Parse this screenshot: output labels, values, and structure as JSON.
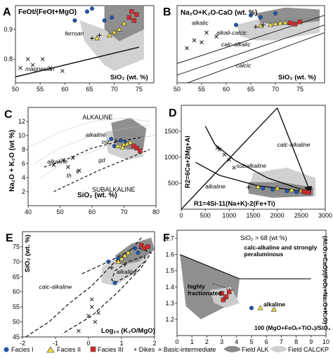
{
  "chart_data": [
    {
      "panel": "A",
      "type": "scatter",
      "title": "FeOt/(FeOt+MgO)",
      "xlabel": "SiO₂ (wt. %)",
      "ylabel": "",
      "xlim": [
        50,
        78
      ],
      "ylim": [
        0.72,
        0.98
      ],
      "xticks": [
        50,
        55,
        60,
        65,
        70,
        75
      ],
      "yticks": [
        0.8,
        0.9
      ],
      "field_labels": [
        "ferroan",
        "magnesian"
      ],
      "boundary": [
        [
          50,
          0.74
        ],
        [
          75,
          0.84
        ]
      ],
      "series": [
        {
          "name": "Facies I",
          "points": [
            [
              62,
              0.93
            ],
            [
              64.5,
              0.96
            ],
            [
              65.5,
              0.97
            ],
            [
              68,
              0.93
            ],
            [
              69.5,
              0.94
            ]
          ]
        },
        {
          "name": "Facies II",
          "points": [
            [
              66.5,
              0.87
            ],
            [
              69,
              0.88
            ],
            [
              70,
              0.89
            ],
            [
              71,
              0.9
            ],
            [
              72,
              0.92
            ]
          ]
        },
        {
          "name": "Facies III",
          "points": [
            [
              73,
              0.94
            ],
            [
              74,
              0.93
            ],
            [
              74.5,
              0.95
            ],
            [
              73.5,
              0.96
            ]
          ]
        },
        {
          "name": "Dikes",
          "points": [
            [
              65.5,
              0.87
            ],
            [
              67,
              0.88
            ]
          ]
        },
        {
          "name": "Basic-intermediate",
          "points": [
            [
              51,
              0.77
            ],
            [
              52.5,
              0.8
            ],
            [
              53.5,
              0.78
            ],
            [
              55.5,
              0.8
            ],
            [
              57,
              0.77
            ],
            [
              59.5,
              0.76
            ]
          ]
        }
      ]
    },
    {
      "panel": "B",
      "type": "scatter",
      "title": "Na₂O+K₂O-CaO (wt. %)",
      "xlabel": "SiO₂ (wt. %)",
      "ylabel": "",
      "xlim": [
        50,
        80
      ],
      "ylim": [
        -8,
        12
      ],
      "xticks": [
        50,
        55,
        60,
        65,
        70,
        75
      ],
      "yticks": [],
      "field_labels": [
        "alkalic",
        "alkali-calcic",
        "calc-alkalic",
        "calcic"
      ],
      "series": [
        {
          "name": "Facies I",
          "points": [
            [
              62,
              7
            ],
            [
              65,
              9.5
            ],
            [
              67,
              9
            ],
            [
              70,
              10
            ]
          ]
        },
        {
          "name": "Facies II",
          "points": [
            [
              67,
              6.8
            ],
            [
              69,
              7
            ],
            [
              70,
              7.3
            ],
            [
              71,
              7.5
            ],
            [
              72,
              7.6
            ]
          ]
        },
        {
          "name": "Facies III",
          "points": [
            [
              73,
              7.5
            ],
            [
              74,
              7.2
            ],
            [
              75,
              7.8
            ]
          ]
        },
        {
          "name": "Dikes",
          "points": [
            [
              66,
              6.5
            ],
            [
              67.5,
              7
            ]
          ]
        },
        {
          "name": "Basic-intermediate",
          "points": [
            [
              52,
              1
            ],
            [
              53.5,
              3
            ],
            [
              55,
              2.5
            ],
            [
              56,
              5
            ],
            [
              58,
              4
            ]
          ]
        }
      ]
    },
    {
      "panel": "C",
      "type": "scatter",
      "title": "",
      "xlabel": "SiO₂ (wt. %)",
      "ylabel": "Na₂O + K₂O (wt %)",
      "xlim": [
        40,
        80
      ],
      "ylim": [
        0,
        14
      ],
      "xticks": [
        40,
        50,
        60,
        70,
        80
      ],
      "yticks": [
        2,
        4,
        6,
        8,
        10,
        12
      ],
      "field_labels": [
        "ALKALINE",
        "SUBALKALINE",
        "alkaline",
        "mz",
        "gd",
        "th",
        "tr",
        "alkaline"
      ],
      "series": [
        {
          "name": "Facies I",
          "points": [
            [
              66,
              9.5
            ],
            [
              67,
              8.5
            ],
            [
              69,
              9.3
            ],
            [
              70.5,
              9
            ]
          ]
        },
        {
          "name": "Facies II",
          "points": [
            [
              68,
              8.5
            ],
            [
              69.5,
              8.3
            ],
            [
              70,
              8.7
            ],
            [
              71,
              8.8
            ],
            [
              72,
              9
            ]
          ]
        },
        {
          "name": "Facies III",
          "points": [
            [
              73,
              8.5
            ],
            [
              74,
              8.2
            ],
            [
              75,
              7.8
            ]
          ]
        },
        {
          "name": "Dikes",
          "points": [
            [
              67.5,
              9.2
            ]
          ]
        },
        {
          "name": "Basic-intermediate",
          "points": [
            [
              48,
              5.8
            ],
            [
              51,
              6.5
            ],
            [
              52.5,
              5.5
            ],
            [
              54,
              6.8
            ],
            [
              56,
              5
            ]
          ]
        }
      ]
    },
    {
      "panel": "D",
      "type": "scatter",
      "title": "",
      "xlabel": "R1=4Si-11(Na+K)-2(Fe+Ti)",
      "ylabel": "R2=6Ca+2Mg+Al",
      "xlim": [
        0,
        3000
      ],
      "ylim": [
        0,
        2000
      ],
      "xticks": [
        0,
        500,
        1000,
        1500,
        2000,
        2500,
        3000
      ],
      "yticks": [
        500,
        1000,
        1500
      ],
      "field_labels": [
        "calc-alkaline",
        "subalkaline",
        "alkaline"
      ],
      "series": [
        {
          "name": "Facies I",
          "points": [
            [
              1700,
              400
            ],
            [
              1900,
              380
            ],
            [
              2200,
              350
            ],
            [
              2400,
              330
            ]
          ]
        },
        {
          "name": "Facies II",
          "points": [
            [
              1600,
              430
            ],
            [
              2000,
              400
            ],
            [
              2300,
              370
            ],
            [
              2500,
              360
            ]
          ]
        },
        {
          "name": "Facies III",
          "points": [
            [
              2550,
              340
            ],
            [
              2600,
              330
            ],
            [
              2650,
              320
            ]
          ]
        },
        {
          "name": "Dikes",
          "points": [
            [
              1400,
              420
            ]
          ]
        },
        {
          "name": "Basic-intermediate",
          "points": [
            [
              750,
              1180
            ],
            [
              800,
              1150
            ],
            [
              900,
              1050
            ],
            [
              1000,
              950
            ],
            [
              1100,
              800
            ]
          ]
        }
      ]
    },
    {
      "panel": "E",
      "type": "scatter",
      "title": "",
      "xlabel": "Log₁₀ (K₂O/MgO)",
      "ylabel": "SiO₂ (wt. %)",
      "xlim": [
        -2,
        2
      ],
      "ylim": [
        45,
        80
      ],
      "xticks": [
        -2,
        -1,
        0,
        1,
        2
      ],
      "yticks": [
        45,
        50,
        55,
        60,
        65,
        70,
        75
      ],
      "field_labels": [
        "calc-alkaline",
        "alkaline"
      ],
      "series": [
        {
          "name": "Facies I",
          "points": [
            [
              0.6,
              70
            ],
            [
              0.9,
              71
            ],
            [
              1.4,
              74.5
            ],
            [
              1.5,
              73
            ],
            [
              0.8,
              63
            ]
          ]
        },
        {
          "name": "Facies II",
          "points": [
            [
              0.9,
              70
            ],
            [
              1.0,
              71
            ],
            [
              1.1,
              72
            ],
            [
              1.2,
              73
            ]
          ]
        },
        {
          "name": "Facies III",
          "points": [
            [
              1.6,
              75.5
            ],
            [
              1.7,
              74.5
            ],
            [
              1.8,
              75
            ]
          ]
        },
        {
          "name": "Dikes",
          "points": [
            [
              0.7,
              68
            ],
            [
              1.1,
              69
            ]
          ]
        },
        {
          "name": "Basic-intermediate",
          "points": [
            [
              -0.3,
              47
            ],
            [
              0,
              52
            ],
            [
              0.1,
              55
            ],
            [
              0.2,
              50
            ],
            [
              0.3,
              53
            ],
            [
              0.1,
              57.5
            ]
          ]
        }
      ]
    },
    {
      "panel": "F",
      "type": "scatter",
      "title": "SiO₂ > 68 (wt %)",
      "xlabel": "100 (MgO+FeOₜ+TiO₂)/SiO₂",
      "ylabel": "(Al₂O₃+CaO)/(FeOₜ+Na₂O+K₂O)",
      "xlim": [
        0,
        10
      ],
      "ylim": [
        1.1,
        1.75
      ],
      "xticks": [
        0,
        1,
        2,
        3,
        4,
        5,
        6,
        7,
        8,
        9,
        10
      ],
      "yticks": [
        1.2,
        1.3,
        1.4,
        1.5,
        1.6,
        1.7
      ],
      "field_labels": [
        "calc-alkaline and strongly peraluminous",
        "highly fractionated",
        "alkaline"
      ],
      "series": [
        {
          "name": "Facies I",
          "points": [
            [
              5.0,
              1.27
            ],
            [
              3.2,
              1.33
            ]
          ]
        },
        {
          "name": "Facies II",
          "points": [
            [
              6.5,
              1.26
            ],
            [
              5.6,
              1.27
            ]
          ]
        },
        {
          "name": "Facies III",
          "points": [
            [
              3.0,
              1.36
            ],
            [
              3.3,
              1.34
            ],
            [
              3.5,
              1.37
            ],
            [
              3.1,
              1.32
            ]
          ]
        }
      ]
    }
  ],
  "legend": {
    "facies1": "Facies I",
    "facies2": "Facies II",
    "facies3": "Facies III",
    "dikes": "+ Dikes",
    "basic": "× Basic-intermediate",
    "field_alk": "Field  ALK",
    "field_calckp": "Field  CALCKP"
  },
  "colors": {
    "facies1": "#2255aa",
    "facies2": "#f0e040",
    "facies3": "#d42a2a",
    "field_alk": "#8a8a8a",
    "field_calckp": "#cfcfcf"
  }
}
